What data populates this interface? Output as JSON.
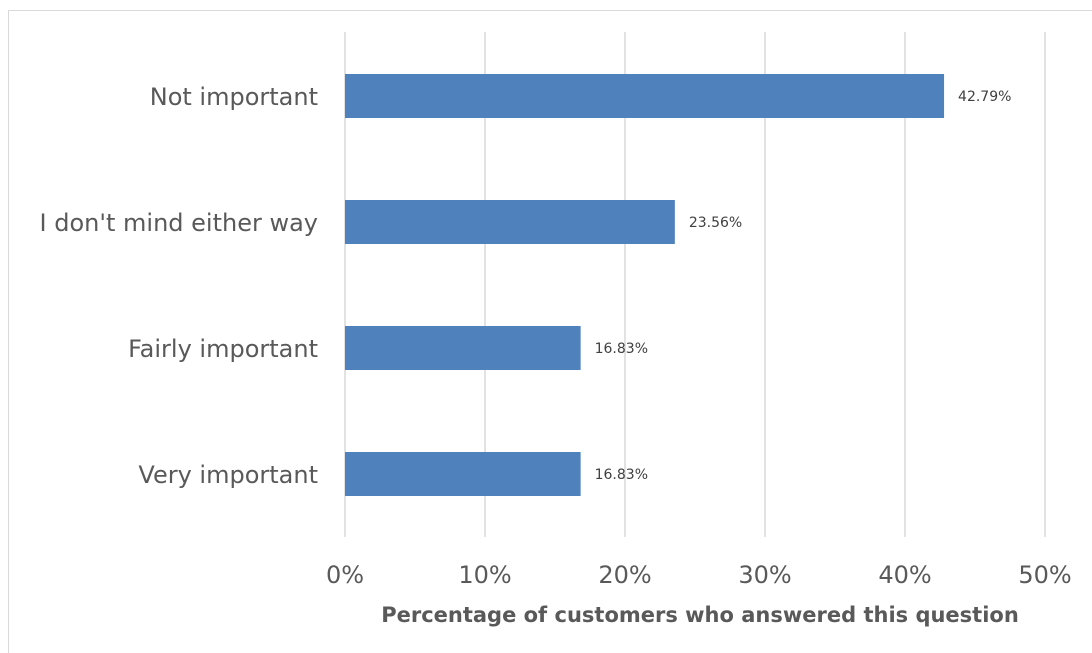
{
  "chart_data": {
    "type": "bar",
    "orientation": "horizontal",
    "categories": [
      "Not important",
      "I don't mind either way",
      "Fairly important",
      "Very important"
    ],
    "values": [
      42.79,
      23.56,
      16.83,
      16.83
    ],
    "data_labels": [
      "42.79%",
      "23.56%",
      "16.83%",
      "16.83%"
    ],
    "xlabel": "Percentage of customers who answered this question",
    "ylabel": "",
    "xlim": [
      0,
      50
    ],
    "x_ticks": [
      0,
      10,
      20,
      30,
      40,
      50
    ],
    "x_tick_labels": [
      "0%",
      "10%",
      "20%",
      "30%",
      "40%",
      "50%"
    ],
    "grid": "vertical",
    "legend": "none",
    "bar_color": "#4f81bd",
    "grid_color": "#d9d9d9"
  }
}
